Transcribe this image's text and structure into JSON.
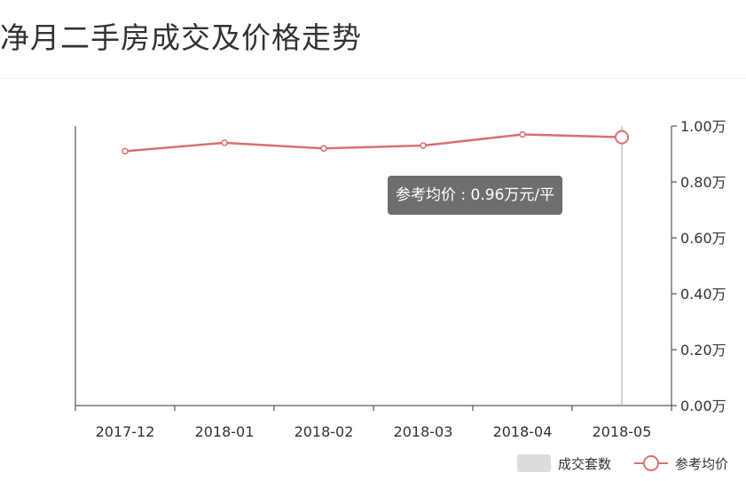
{
  "page": {
    "title": "净月二手房成交及价格走势"
  },
  "tooltip": {
    "label": "参考均价 : 0.96万元/平"
  },
  "legend": {
    "items": [
      {
        "label": "成交套数",
        "color": "#dcdcdc"
      },
      {
        "label": "参考均价",
        "color": "#d97070"
      }
    ]
  },
  "chart_data": {
    "type": "line",
    "title": "净月二手房成交及价格走势",
    "categories": [
      "2017-12",
      "2018-01",
      "2018-02",
      "2018-03",
      "2018-04",
      "2018-05"
    ],
    "series": [
      {
        "name": "参考均价",
        "values": [
          0.91,
          0.94,
          0.92,
          0.93,
          0.97,
          0.96
        ],
        "color": "#d97070"
      }
    ],
    "ylim": [
      0,
      1.0
    ],
    "yticks": [
      "0.00万",
      "0.20万",
      "0.40万",
      "0.60万",
      "0.80万",
      "1.00万"
    ],
    "y_axis_position": "right",
    "highlighted_category": "2018-05",
    "grid": false,
    "legend_position": "bottom-right"
  }
}
